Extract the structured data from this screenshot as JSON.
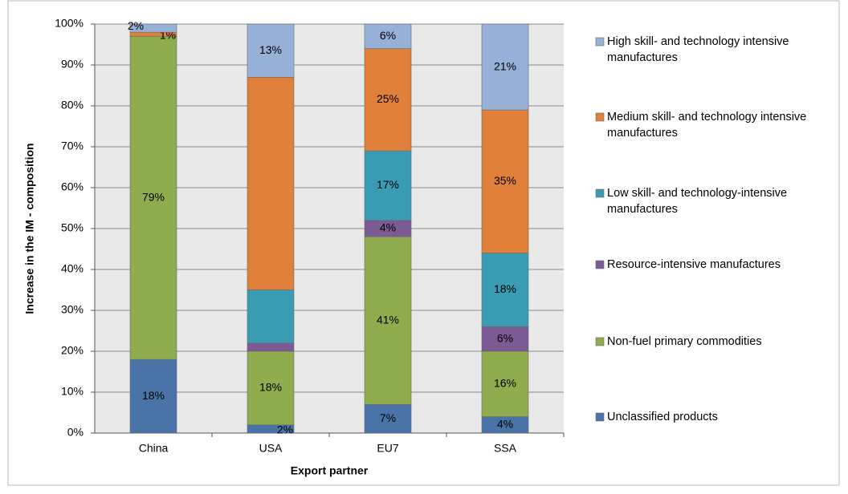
{
  "chart_data": {
    "type": "stacked_bar",
    "y_label": "Increase in the IM  - composition",
    "x_label": "Export partner",
    "categories": [
      "China",
      "USA",
      "EU7",
      "SSA"
    ],
    "ylim": [
      0,
      100
    ],
    "yticks": [
      {
        "value": 0,
        "label": "0%"
      },
      {
        "value": 10,
        "label": "10%"
      },
      {
        "value": 20,
        "label": "20%"
      },
      {
        "value": 30,
        "label": "30%"
      },
      {
        "value": 40,
        "label": "40%"
      },
      {
        "value": 50,
        "label": "50%"
      },
      {
        "value": 60,
        "label": "60%"
      },
      {
        "value": 70,
        "label": "70%"
      },
      {
        "value": 80,
        "label": "80%"
      },
      {
        "value": 90,
        "label": "90%"
      },
      {
        "value": 100,
        "label": "100%"
      }
    ],
    "grid": true,
    "legend": "right",
    "series": [
      {
        "name": "Unclassified products",
        "color": "#4a74a8",
        "values": [
          18,
          2,
          7,
          4
        ],
        "value_labels": [
          "18%",
          "2%",
          "7%",
          "4%"
        ]
      },
      {
        "name": "Non-fuel primary commodities",
        "color": "#8fac4e",
        "values": [
          79,
          18,
          41,
          16
        ],
        "value_labels": [
          "79%",
          "18%",
          "41%",
          "16%"
        ]
      },
      {
        "name": "Resource-intensive manufactures",
        "color": "#7c5a94",
        "values": [
          0,
          2,
          4,
          6
        ],
        "value_labels": [
          null,
          null,
          "4%",
          "6%"
        ]
      },
      {
        "name": "Low skill- and technology-intensive manufactures",
        "color": "#3a9cb3",
        "values": [
          0,
          13,
          17,
          18
        ],
        "value_labels": [
          null,
          null,
          "17%",
          "18%"
        ]
      },
      {
        "name": "Medium skill- and technology intensive manufactures",
        "color": "#e0803a",
        "values": [
          1,
          52,
          25,
          35
        ],
        "value_labels": [
          "1%",
          null,
          "25%",
          "35%"
        ]
      },
      {
        "name": "High skill- and technology intensive manufactures",
        "color": "#97b0d8",
        "values": [
          2,
          13,
          6,
          21
        ],
        "value_labels": [
          "2%",
          "13%",
          "6%",
          "21%"
        ]
      }
    ]
  }
}
